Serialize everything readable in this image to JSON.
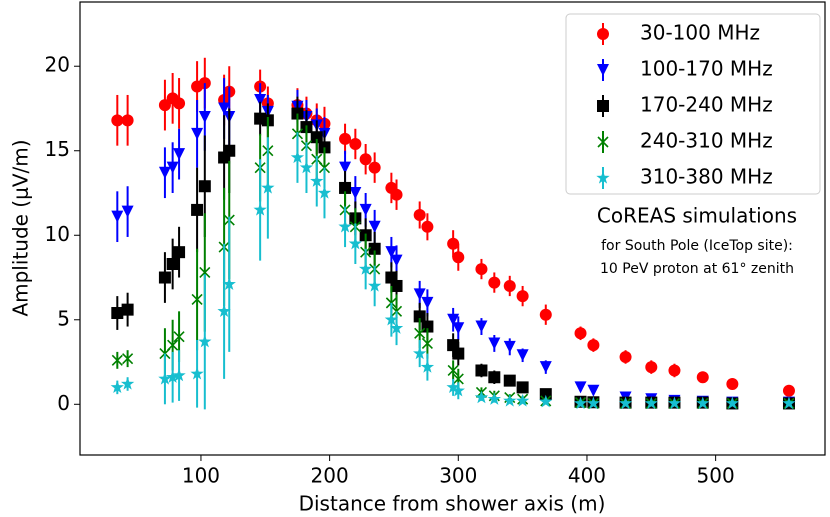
{
  "chart_data": {
    "type": "scatter",
    "x_label": "Distance from shower axis (m)",
    "y_label": "Amplitude (μV/m)",
    "annotations": [
      "CoREAS simulations",
      "for South Pole (IceTop site):",
      "10 PeV proton at 61° zenith"
    ],
    "xlim": [
      6,
      585
    ],
    "ylim": [
      -3,
      23.8
    ],
    "xticks": [
      100,
      200,
      300,
      400,
      500
    ],
    "yticks": [
      0,
      5,
      10,
      15,
      20
    ],
    "legend": "upper right",
    "x": [
      35,
      43,
      72,
      78,
      83,
      97,
      103,
      118,
      122,
      146,
      152,
      175,
      182,
      190,
      196,
      212,
      220,
      228,
      235,
      248,
      252,
      270,
      276,
      296,
      300,
      318,
      328,
      340,
      350,
      368,
      395,
      405,
      430,
      450,
      468,
      490,
      513,
      557
    ],
    "series": [
      {
        "name": "30-100 MHz",
        "color": "#ff0000",
        "marker": "circle",
        "values": [
          16.8,
          16.8,
          17.7,
          18.1,
          17.8,
          18.8,
          19.0,
          18.0,
          18.5,
          18.8,
          17.8,
          17.7,
          17.2,
          16.8,
          16.6,
          15.7,
          15.4,
          14.5,
          14.0,
          12.8,
          12.4,
          11.2,
          10.5,
          9.5,
          8.7,
          8.0,
          7.2,
          7.0,
          6.4,
          5.3,
          4.2,
          3.5,
          2.8,
          2.2,
          2.0,
          1.6,
          1.2,
          0.8
        ],
        "errors": [
          1.5,
          1.5,
          1.5,
          1.5,
          1.5,
          1.5,
          1.5,
          1.5,
          1.5,
          1.0,
          1.0,
          1.0,
          1.0,
          1.0,
          1.0,
          0.9,
          0.9,
          0.9,
          0.9,
          0.9,
          0.9,
          0.8,
          0.8,
          0.8,
          0.8,
          0.6,
          0.6,
          0.6,
          0.6,
          0.6,
          0.4,
          0.4,
          0.4,
          0.4,
          0.4,
          0.2,
          0.2,
          0.2
        ]
      },
      {
        "name": "100-170 MHz",
        "color": "#0000ff",
        "marker": "triangle",
        "values": [
          11.1,
          11.4,
          13.7,
          14.0,
          14.8,
          16.0,
          17.0,
          17.5,
          17.0,
          18.0,
          17.3,
          17.6,
          17.0,
          16.5,
          16.0,
          14.0,
          12.5,
          11.5,
          10.5,
          9.0,
          8.5,
          6.5,
          6.0,
          5.0,
          4.5,
          4.6,
          3.6,
          3.4,
          2.9,
          2.2,
          1.0,
          0.8,
          0.4,
          0.3,
          0.2,
          0.15,
          0.1,
          0.1
        ],
        "errors": [
          1.5,
          1.5,
          1.5,
          1.5,
          1.5,
          2.0,
          2.0,
          1.8,
          1.8,
          1.0,
          1.0,
          1.0,
          1.0,
          1.0,
          1.0,
          1.0,
          1.0,
          1.0,
          1.0,
          0.9,
          0.9,
          0.8,
          0.8,
          0.7,
          0.7,
          0.5,
          0.5,
          0.5,
          0.4,
          0.4,
          0.2,
          0.2,
          0.1,
          0.1,
          0.1,
          0.1,
          0.1,
          0.1
        ]
      },
      {
        "name": "170-240 MHz",
        "color": "#000000",
        "marker": "square",
        "values": [
          5.4,
          5.6,
          7.5,
          8.3,
          9.0,
          11.5,
          12.9,
          14.6,
          15.0,
          16.9,
          16.8,
          17.2,
          16.4,
          15.8,
          15.2,
          12.8,
          11.0,
          10.0,
          9.2,
          7.5,
          7.0,
          5.2,
          4.6,
          3.5,
          3.0,
          2.0,
          1.6,
          1.4,
          1.0,
          0.6,
          0.15,
          0.12,
          0.1,
          0.1,
          0.1,
          0.1,
          0.05,
          0.05
        ],
        "errors": [
          1.0,
          1.0,
          1.5,
          1.5,
          1.5,
          2.5,
          3.0,
          2.5,
          2.5,
          1.0,
          1.0,
          1.0,
          1.0,
          1.0,
          1.0,
          1.0,
          1.0,
          1.0,
          1.0,
          0.9,
          0.9,
          0.8,
          0.8,
          0.7,
          0.7,
          0.4,
          0.4,
          0.3,
          0.3,
          0.2,
          0.1,
          0.1,
          0.1,
          0.1,
          0.1,
          0.1,
          0.1,
          0.1
        ]
      },
      {
        "name": "240-310 MHz",
        "color": "#008000",
        "marker": "x",
        "values": [
          2.6,
          2.7,
          3.0,
          3.5,
          4.0,
          6.2,
          7.8,
          9.3,
          10.9,
          14.0,
          15.0,
          16.0,
          15.3,
          14.5,
          14.0,
          11.5,
          10.5,
          9.0,
          8.0,
          6.0,
          5.5,
          4.2,
          3.6,
          2.0,
          1.5,
          0.7,
          0.5,
          0.4,
          0.3,
          0.2,
          0.1,
          0.05,
          0.05,
          0.05,
          0.05,
          0.05,
          0.05,
          0.05
        ],
        "errors": [
          0.5,
          0.5,
          1.5,
          1.5,
          1.5,
          3.0,
          3.5,
          3.5,
          3.5,
          2.0,
          2.0,
          1.2,
          1.2,
          1.2,
          1.2,
          1.1,
          1.1,
          1.1,
          1.1,
          1.0,
          1.0,
          0.9,
          0.9,
          0.6,
          0.6,
          0.3,
          0.3,
          0.2,
          0.2,
          0.1,
          0.1,
          0.05,
          0.05,
          0.05,
          0.05,
          0.05,
          0.05,
          0.05
        ]
      },
      {
        "name": "310-380 MHz",
        "color": "#17becf",
        "marker": "star",
        "values": [
          1.0,
          1.2,
          1.5,
          1.6,
          1.7,
          1.8,
          3.7,
          5.5,
          7.1,
          11.5,
          12.8,
          14.6,
          14.0,
          13.2,
          12.5,
          10.5,
          9.5,
          8.0,
          7.0,
          5.0,
          4.5,
          3.0,
          2.2,
          1.0,
          0.8,
          0.4,
          0.3,
          0.2,
          0.2,
          0.15,
          0.05,
          0.05,
          0.05,
          0.05,
          0.05,
          0.05,
          0.05,
          0.05
        ],
        "errors": [
          0.4,
          0.4,
          1.5,
          1.5,
          1.5,
          2.0,
          4.0,
          4.0,
          4.0,
          3.0,
          3.0,
          1.5,
          1.5,
          1.5,
          1.5,
          1.2,
          1.2,
          1.2,
          1.2,
          1.0,
          1.0,
          0.8,
          0.8,
          0.5,
          0.5,
          0.2,
          0.2,
          0.1,
          0.1,
          0.1,
          0.05,
          0.05,
          0.05,
          0.05,
          0.05,
          0.05,
          0.05,
          0.05
        ]
      }
    ]
  }
}
